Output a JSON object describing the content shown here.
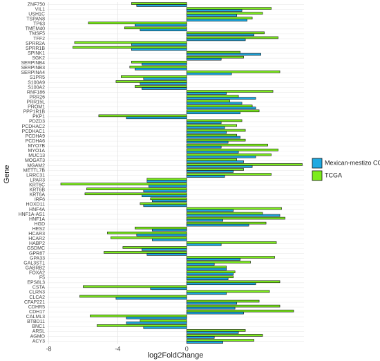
{
  "chart_data": {
    "type": "bar",
    "orientation": "horizontal",
    "x_label": "log2FoldChange",
    "y_label": "Gene",
    "categories": [
      "ZNF750",
      "VIL1",
      "USH1C",
      "TSPAN8",
      "TP63",
      "TMEM40",
      "TMSF5",
      "TFF2",
      "SPRR2A",
      "SPRR1B",
      "SPINK1",
      "SGK2",
      "SERPINB4",
      "SERPINB3",
      "SERPINA4",
      "S1PR5",
      "S100A9",
      "S100A2",
      "RNF186",
      "PRR26",
      "PRR15L",
      "PROM1",
      "PPP1R1B",
      "PKP1",
      "PDZD3",
      "PCDHAC2",
      "PCDHAC1",
      "PCDHA9",
      "PCDHA6",
      "MYO7B",
      "MYO1A",
      "MUC13",
      "MOGAT3",
      "MGAM2",
      "METTL7B",
      "LRRC31",
      "LPAR3",
      "KRT6C",
      "KRT6B",
      "KRT6A",
      "IRF6",
      "HOXD11",
      "HNF4A",
      "HNF1A-AS1",
      "HNF1A",
      "HGD",
      "HES2",
      "HCAR3",
      "HCAR2",
      "HABP2",
      "GSDMC",
      "GPR87",
      "GPA33",
      "GAL3ST1",
      "GABRB2",
      "FOXA2",
      "F5",
      "EPS8L3",
      "CSTA",
      "CLRN3",
      "CLCA2",
      "CFAP221",
      "CDHR5",
      "CDH17",
      "CALML3",
      "BTBD11",
      "BNC1",
      "ARSL",
      "AGMO",
      "ACY3"
    ],
    "series": [
      {
        "name": "Mexican-mestizo CC",
        "color": "#1ea9e1",
        "values": [
          -2.9,
          3.2,
          2.9,
          3.5,
          -3.0,
          -2.7,
          3.9,
          3.4,
          -3.2,
          -3.2,
          4.3,
          2.0,
          -2.6,
          -3.0,
          2.6,
          -2.5,
          -2.7,
          -2.6,
          2.3,
          4.0,
          3.2,
          4.0,
          3.1,
          -3.5,
          2.0,
          2.2,
          2.3,
          3.1,
          2.4,
          2.0,
          3.0,
          4.0,
          3.3,
          3.8,
          2.7,
          2.2,
          -2.3,
          -2.2,
          -2.5,
          -2.6,
          -2.0,
          -2.5,
          2.7,
          5.4,
          2.1,
          3.6,
          -2.0,
          -2.9,
          -2.0,
          2.0,
          -2.6,
          -2.3,
          3.1,
          1.6,
          2.3,
          2.7,
          2.4,
          4.0,
          -2.1,
          2.3,
          -4.1,
          2.9,
          2.8,
          3.3,
          -3.5,
          -3.5,
          -2.5,
          3.0,
          1.6,
          2.1
        ]
      },
      {
        "name": "TCGA",
        "color": "#7cec1c",
        "values": [
          -3.2,
          4.9,
          4.4,
          3.8,
          -5.7,
          -3.6,
          4.5,
          5.3,
          -6.5,
          -6.6,
          3.1,
          3.3,
          -3.2,
          -3.3,
          5.4,
          -3.8,
          -4.1,
          -3.0,
          5.0,
          3.0,
          2.5,
          3.8,
          4.2,
          -5.1,
          3.2,
          2.9,
          3.4,
          2.9,
          3.4,
          4.7,
          5.3,
          4.9,
          2.9,
          6.7,
          3.3,
          4.9,
          -2.3,
          -7.3,
          -5.8,
          -5.9,
          -2.1,
          -2.7,
          5.5,
          4.4,
          5.7,
          4.6,
          -3.0,
          -4.6,
          -4.4,
          5.2,
          -3.7,
          -4.8,
          5.1,
          3.7,
          2.3,
          2.8,
          2.7,
          5.4,
          -6.0,
          4.8,
          -6.2,
          4.2,
          5.4,
          6.2,
          -5.6,
          -2.7,
          -5.2,
          3.4,
          4.4,
          3.9
        ]
      }
    ],
    "xlim": [
      -8.1,
      6.8
    ],
    "xticks": [
      -8,
      -4,
      0
    ],
    "grid": true,
    "legend": "right"
  }
}
